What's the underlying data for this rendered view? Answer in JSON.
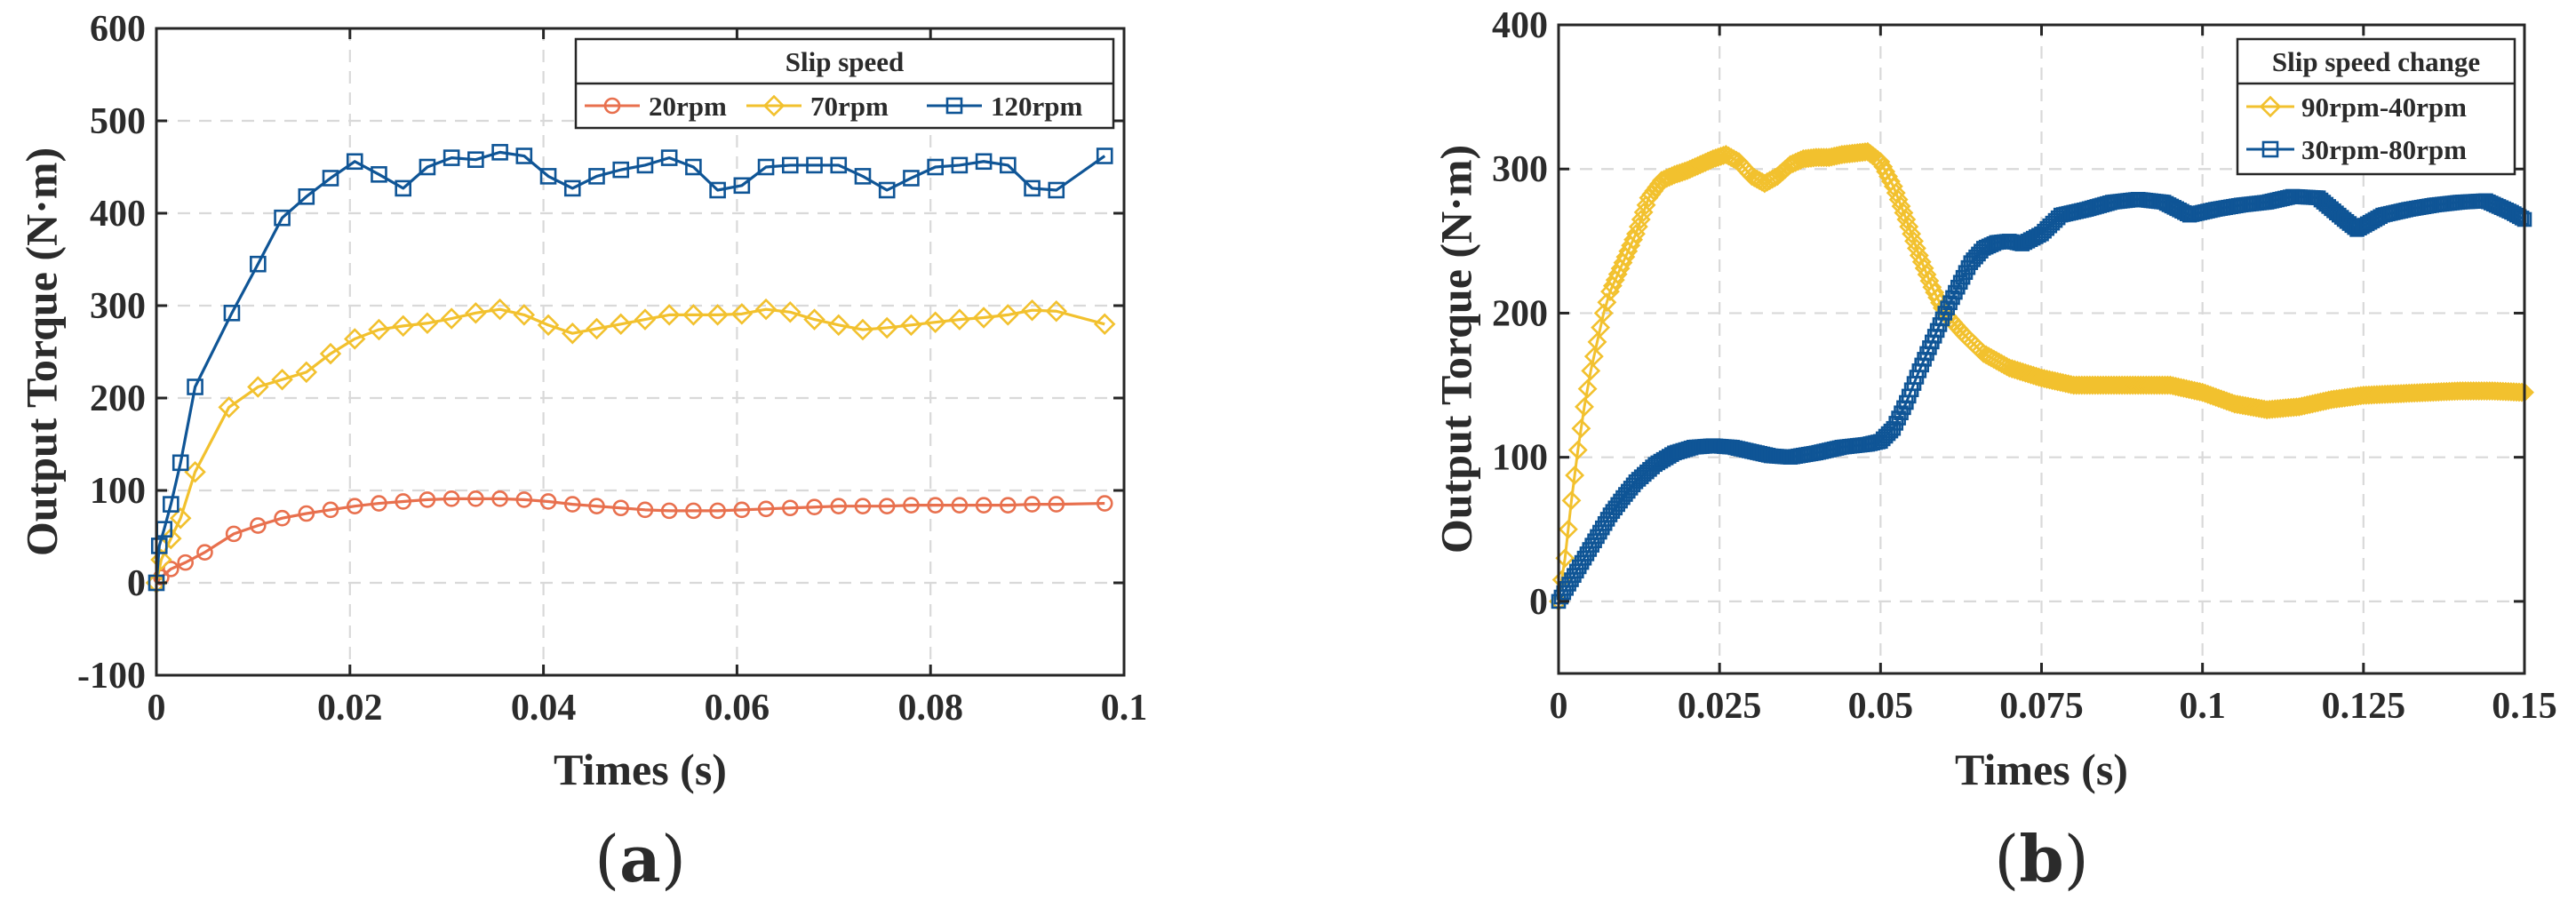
{
  "chart_data": [
    {
      "type": "line",
      "panel_label": "a",
      "xlabel": "Times (s)",
      "ylabel": "Output Torque (N·m)",
      "xlim": [
        0,
        0.1
      ],
      "ylim": [
        -100,
        600
      ],
      "x_ticks": [
        0,
        0.02,
        0.04,
        0.06,
        0.08,
        0.1
      ],
      "x_tick_labels": [
        "0",
        "0.02",
        "0.04",
        "0.06",
        "0.08",
        "0.1"
      ],
      "y_ticks": [
        -100,
        0,
        100,
        200,
        300,
        400,
        500,
        600
      ],
      "y_tick_labels": [
        "-100",
        "0",
        "100",
        "200",
        "300",
        "400",
        "500",
        "600"
      ],
      "grid": true,
      "legend": {
        "title": "Slip speed",
        "placement": "top-right",
        "orientation": "horizontal"
      },
      "series": [
        {
          "name": "20rpm",
          "color": "#e8704e",
          "marker": "circle",
          "x": [
            0,
            0.0005,
            0.0015,
            0.003,
            0.005,
            0.008,
            0.0105,
            0.013,
            0.0155,
            0.018,
            0.0205,
            0.023,
            0.0255,
            0.028,
            0.0305,
            0.033,
            0.0355,
            0.038,
            0.0405,
            0.043,
            0.0455,
            0.048,
            0.0505,
            0.053,
            0.0555,
            0.058,
            0.0605,
            0.063,
            0.0655,
            0.068,
            0.0705,
            0.073,
            0.0755,
            0.078,
            0.0805,
            0.083,
            0.0855,
            0.088,
            0.0905,
            0.093,
            0.098
          ],
          "y": [
            0,
            6,
            15,
            22,
            33,
            53,
            62,
            70,
            75,
            79,
            83,
            86,
            88,
            90,
            91,
            91,
            91,
            90,
            88,
            85,
            83,
            81,
            79,
            78,
            78,
            78,
            79,
            80,
            81,
            82,
            83,
            83,
            83,
            84,
            84,
            84,
            84,
            84,
            85,
            85,
            86
          ]
        },
        {
          "name": "70rpm",
          "color": "#f2c12e",
          "marker": "diamond",
          "x": [
            0,
            0.0005,
            0.0015,
            0.0025,
            0.004,
            0.0075,
            0.0105,
            0.013,
            0.0155,
            0.018,
            0.0205,
            0.023,
            0.0255,
            0.028,
            0.0305,
            0.033,
            0.0355,
            0.038,
            0.0405,
            0.043,
            0.0455,
            0.048,
            0.0505,
            0.053,
            0.0555,
            0.058,
            0.0605,
            0.063,
            0.0655,
            0.068,
            0.0705,
            0.073,
            0.0755,
            0.078,
            0.0805,
            0.083,
            0.0855,
            0.088,
            0.0905,
            0.093,
            0.098
          ],
          "y": [
            0,
            25,
            48,
            70,
            120,
            190,
            212,
            220,
            228,
            248,
            264,
            274,
            278,
            281,
            286,
            292,
            296,
            290,
            279,
            270,
            275,
            280,
            285,
            290,
            290,
            290,
            291,
            296,
            293,
            285,
            279,
            274,
            276,
            279,
            282,
            285,
            287,
            290,
            295,
            294,
            280
          ]
        },
        {
          "name": "120rpm",
          "color": "#0f5596",
          "marker": "square",
          "x": [
            0,
            0.0003,
            0.0008,
            0.0015,
            0.0025,
            0.004,
            0.0078,
            0.0105,
            0.013,
            0.0155,
            0.018,
            0.0205,
            0.023,
            0.0255,
            0.028,
            0.0305,
            0.033,
            0.0355,
            0.038,
            0.0405,
            0.043,
            0.0455,
            0.048,
            0.0505,
            0.053,
            0.0555,
            0.058,
            0.0605,
            0.063,
            0.0655,
            0.068,
            0.0705,
            0.073,
            0.0755,
            0.078,
            0.0805,
            0.083,
            0.0855,
            0.088,
            0.0905,
            0.093,
            0.098
          ],
          "y": [
            0,
            40,
            58,
            85,
            130,
            212,
            292,
            345,
            395,
            418,
            438,
            456,
            442,
            427,
            450,
            460,
            458,
            466,
            462,
            440,
            427,
            440,
            447,
            452,
            460,
            450,
            425,
            430,
            450,
            452,
            452,
            452,
            440,
            425,
            438,
            450,
            452,
            456,
            452,
            427,
            425,
            462
          ]
        }
      ]
    },
    {
      "type": "line",
      "panel_label": "b",
      "xlabel": "Times (s)",
      "ylabel": "Output Torque (N·m)",
      "xlim": [
        0,
        0.15
      ],
      "ylim": [
        -50,
        400
      ],
      "x_ticks": [
        0,
        0.025,
        0.05,
        0.075,
        0.1,
        0.125,
        0.15
      ],
      "x_tick_labels": [
        "0",
        "0.025",
        "0.05",
        "0.075",
        "0.1",
        "0.125",
        "0.15"
      ],
      "y_ticks": [
        0,
        100,
        200,
        300,
        400
      ],
      "y_tick_labels": [
        "0",
        "100",
        "200",
        "300",
        "400"
      ],
      "grid": true,
      "legend": {
        "title": "Slip speed change",
        "placement": "top-right",
        "orientation": "vertical"
      },
      "series": [
        {
          "name": "90rpm-40rpm",
          "color": "#f2c12e",
          "marker": "diamond",
          "x": [
            0,
            0.001,
            0.002,
            0.003,
            0.004,
            0.005,
            0.006,
            0.007,
            0.008,
            0.01,
            0.012,
            0.014,
            0.016,
            0.018,
            0.02,
            0.022,
            0.024,
            0.026,
            0.028,
            0.03,
            0.032,
            0.034,
            0.036,
            0.038,
            0.04,
            0.042,
            0.044,
            0.046,
            0.048,
            0.05,
            0.052,
            0.054,
            0.056,
            0.058,
            0.06,
            0.063,
            0.066,
            0.07,
            0.075,
            0.08,
            0.085,
            0.09,
            0.095,
            0.1,
            0.105,
            0.11,
            0.115,
            0.12,
            0.125,
            0.13,
            0.135,
            0.14,
            0.145,
            0.15
          ],
          "y": [
            0,
            30,
            70,
            105,
            135,
            160,
            180,
            200,
            215,
            235,
            255,
            280,
            292,
            296,
            299,
            303,
            307,
            310,
            305,
            295,
            290,
            295,
            303,
            307,
            308,
            308,
            310,
            311,
            312,
            305,
            288,
            265,
            240,
            218,
            200,
            185,
            172,
            162,
            155,
            150,
            150,
            150,
            150,
            145,
            137,
            133,
            135,
            140,
            143,
            144,
            145,
            146,
            146,
            145
          ]
        },
        {
          "name": "30rpm-80rpm",
          "color": "#0f5596",
          "marker": "square",
          "x": [
            0,
            0.002,
            0.004,
            0.006,
            0.008,
            0.01,
            0.012,
            0.015,
            0.018,
            0.021,
            0.024,
            0.027,
            0.03,
            0.033,
            0.036,
            0.04,
            0.044,
            0.048,
            0.05,
            0.052,
            0.054,
            0.056,
            0.058,
            0.06,
            0.062,
            0.064,
            0.066,
            0.068,
            0.07,
            0.072,
            0.075,
            0.078,
            0.082,
            0.086,
            0.09,
            0.094,
            0.098,
            0.102,
            0.106,
            0.11,
            0.114,
            0.118,
            0.122,
            0.124,
            0.128,
            0.132,
            0.136,
            0.14,
            0.144,
            0.148,
            0.15
          ],
          "y": [
            0,
            15,
            30,
            45,
            60,
            72,
            83,
            95,
            103,
            107,
            108,
            107,
            104,
            101,
            100,
            103,
            107,
            109,
            111,
            120,
            138,
            160,
            180,
            200,
            218,
            235,
            245,
            249,
            250,
            248,
            255,
            268,
            272,
            277,
            279,
            277,
            268,
            272,
            275,
            277,
            281,
            280,
            265,
            258,
            268,
            272,
            275,
            277,
            278,
            270,
            265
          ]
        }
      ]
    }
  ]
}
